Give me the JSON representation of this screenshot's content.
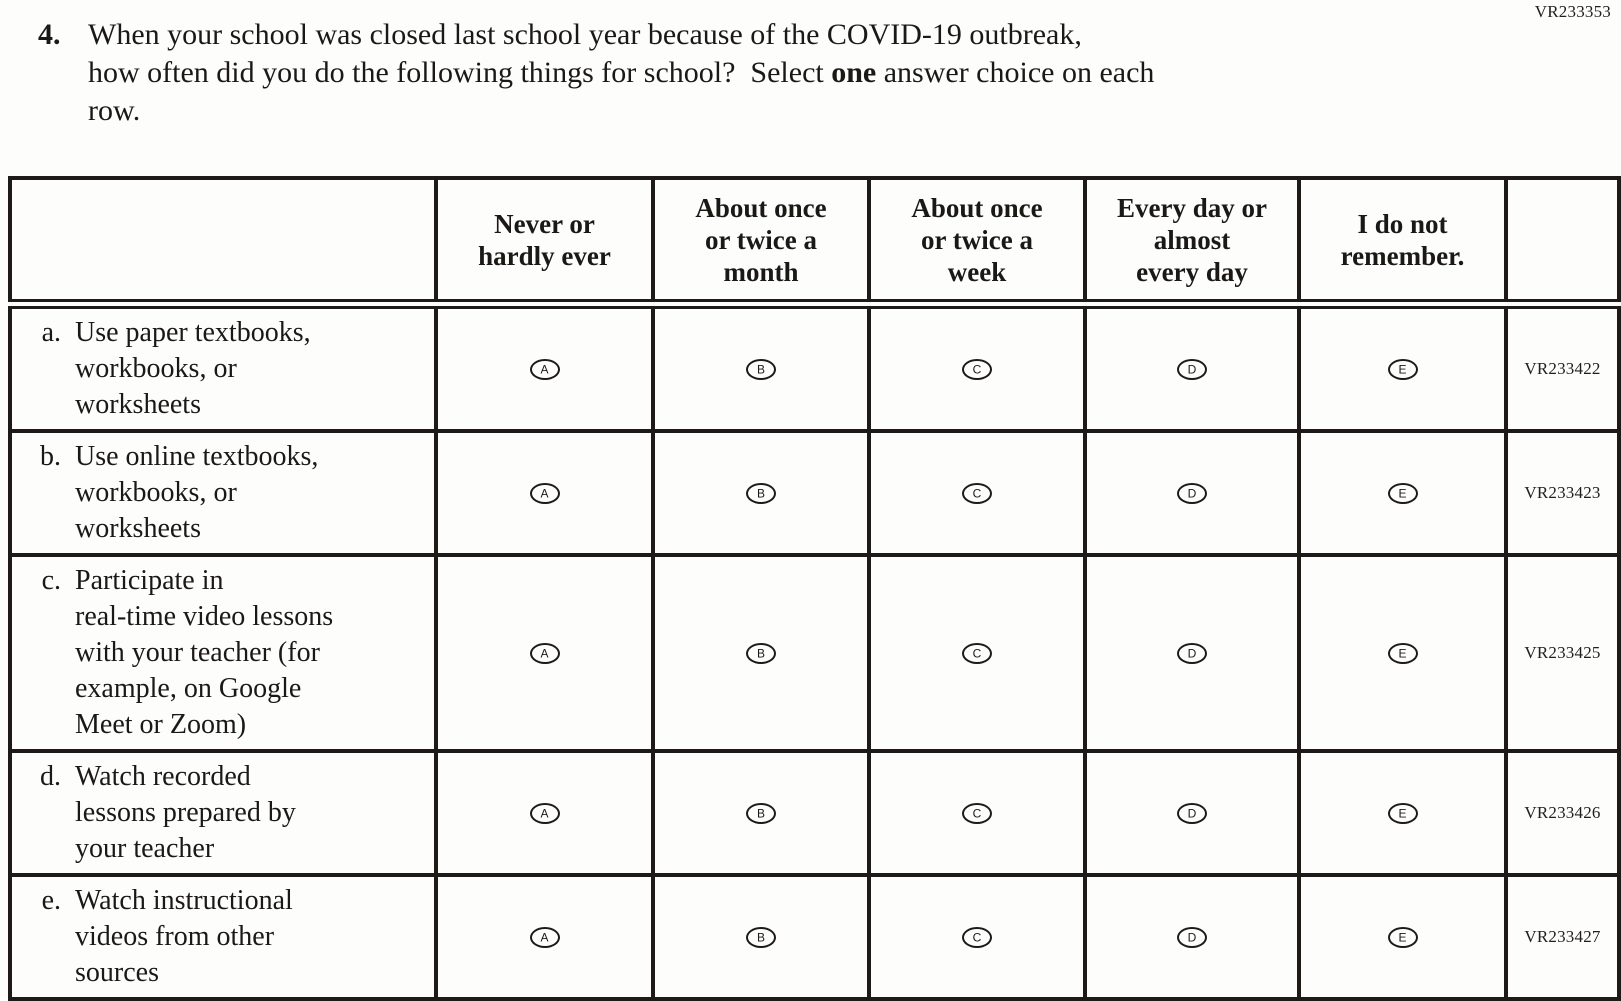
{
  "page": {
    "top_right_code": "VR233353"
  },
  "question": {
    "number": "4.",
    "line1": "When your school was closed last school year because of the COVID-19 outbreak,",
    "line2_pre": "how often did you do the following things for school?  Select ",
    "line2_bold": "one",
    "line2_post": " answer choice on each",
    "line3": "row."
  },
  "table": {
    "columns": [
      "Never or\nhardly ever",
      "About once\nor twice a\nmonth",
      "About once\nor twice a\nweek",
      "Every day or\nalmost\nevery day",
      "I do not\nremember."
    ],
    "option_letters": [
      "A",
      "B",
      "C",
      "D",
      "E"
    ],
    "rows": [
      {
        "letter": "a.",
        "text": "Use paper textbooks,\nworkbooks, or\nworksheets",
        "code": "VR233422"
      },
      {
        "letter": "b.",
        "text": "Use online textbooks,\nworkbooks, or\nworksheets",
        "code": "VR233423"
      },
      {
        "letter": "c.",
        "text": "Participate in\nreal-time video lessons\nwith your teacher (for\nexample, on Google\nMeet or Zoom)",
        "code": "VR233425"
      },
      {
        "letter": "d.",
        "text": "Watch recorded\nlessons prepared by\nyour teacher",
        "code": "VR233426"
      },
      {
        "letter": "e.",
        "text": "Watch instructional\nvideos from other\nsources",
        "code": "VR233427"
      }
    ]
  }
}
